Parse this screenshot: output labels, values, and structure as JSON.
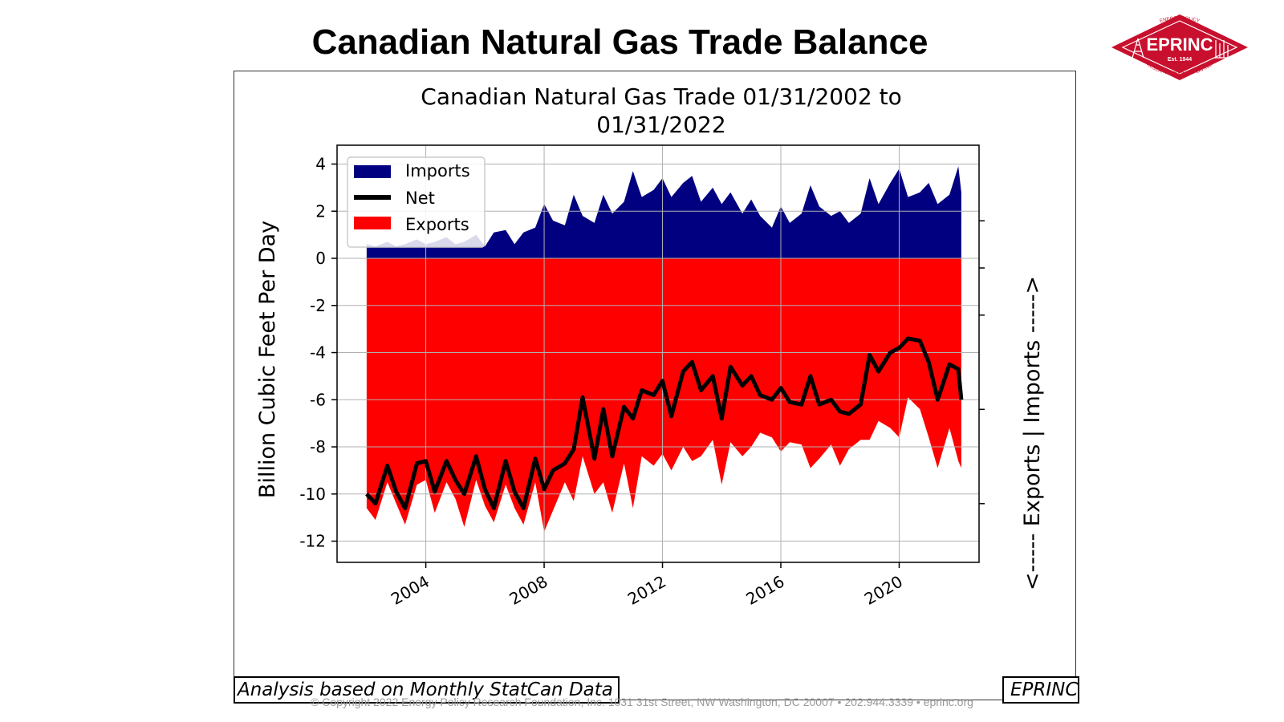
{
  "slide": {
    "title": "Canadian Natural Gas Trade Balance",
    "note_left": "Analysis based on Monthly StatCan Data",
    "note_right": "EPRINC",
    "copyright": "© Copyright 2022 Energy Policy Research Foundation, Inc. 1031 31st Street, NW Washington, DC 20007 • 202.944.3339 • eprinc.org"
  },
  "logo": {
    "main_text": "EPRINC",
    "est_text": "Est. 1944",
    "arc_top": "ENERGY POLICY",
    "arc_bottom": "RESEARCH FOUNDATION INC.",
    "color": "#c8102e"
  },
  "chart_data": {
    "type": "area",
    "title_line1": "Canadian Natural Gas Trade 01/31/2002 to",
    "title_line2": "01/31/2022",
    "ylabel": "Billion Cubic Feet Per Day",
    "ylabel_right": "<----- Exports | Imports ----->",
    "xlim": [
      2001.0,
      2022.7
    ],
    "ylim": [
      -12.9,
      4.8
    ],
    "yticks": [
      4,
      2,
      0,
      -2,
      -4,
      -6,
      -8,
      -10,
      -12
    ],
    "xticks": [
      2004,
      2008,
      2012,
      2016,
      2020
    ],
    "grid": true,
    "legend_position": "top-left",
    "colors": {
      "imports": "#000080",
      "net": "#000000",
      "exports": "#ff0000"
    },
    "anchor_points": [
      {
        "x": 2002.0,
        "imports": 0.6,
        "exports": -10.6,
        "net": -10.0
      },
      {
        "x": 2002.3,
        "imports": 0.5,
        "exports": -11.1,
        "net": -10.4
      },
      {
        "x": 2002.7,
        "imports": 0.7,
        "exports": -9.5,
        "net": -8.8
      },
      {
        "x": 2003.0,
        "imports": 0.5,
        "exports": -10.4,
        "net": -9.9
      },
      {
        "x": 2003.3,
        "imports": 0.6,
        "exports": -11.3,
        "net": -10.6
      },
      {
        "x": 2003.7,
        "imports": 0.8,
        "exports": -9.6,
        "net": -8.7
      },
      {
        "x": 2004.0,
        "imports": 0.6,
        "exports": -9.4,
        "net": -8.6
      },
      {
        "x": 2004.3,
        "imports": 0.7,
        "exports": -10.8,
        "net": -9.9
      },
      {
        "x": 2004.7,
        "imports": 0.9,
        "exports": -9.5,
        "net": -8.6
      },
      {
        "x": 2005.0,
        "imports": 0.6,
        "exports": -10.2,
        "net": -9.4
      },
      {
        "x": 2005.3,
        "imports": 0.7,
        "exports": -11.4,
        "net": -10.0
      },
      {
        "x": 2005.7,
        "imports": 1.0,
        "exports": -9.4,
        "net": -8.4
      },
      {
        "x": 2006.0,
        "imports": 0.5,
        "exports": -10.5,
        "net": -9.8
      },
      {
        "x": 2006.3,
        "imports": 1.1,
        "exports": -11.2,
        "net": -10.6
      },
      {
        "x": 2006.7,
        "imports": 1.2,
        "exports": -9.6,
        "net": -8.6
      },
      {
        "x": 2007.0,
        "imports": 0.6,
        "exports": -10.6,
        "net": -9.9
      },
      {
        "x": 2007.3,
        "imports": 1.1,
        "exports": -11.3,
        "net": -10.6
      },
      {
        "x": 2007.7,
        "imports": 1.3,
        "exports": -9.5,
        "net": -8.5
      },
      {
        "x": 2008.0,
        "imports": 2.3,
        "exports": -11.6,
        "net": -9.8
      },
      {
        "x": 2008.3,
        "imports": 1.6,
        "exports": -10.7,
        "net": -9.0
      },
      {
        "x": 2008.7,
        "imports": 1.4,
        "exports": -9.5,
        "net": -8.7
      },
      {
        "x": 2009.0,
        "imports": 2.7,
        "exports": -10.3,
        "net": -8.1
      },
      {
        "x": 2009.3,
        "imports": 1.8,
        "exports": -8.4,
        "net": -5.9
      },
      {
        "x": 2009.7,
        "imports": 1.5,
        "exports": -10.0,
        "net": -8.5
      },
      {
        "x": 2010.0,
        "imports": 2.7,
        "exports": -9.5,
        "net": -6.4
      },
      {
        "x": 2010.3,
        "imports": 1.9,
        "exports": -10.8,
        "net": -8.4
      },
      {
        "x": 2010.7,
        "imports": 2.4,
        "exports": -8.7,
        "net": -6.3
      },
      {
        "x": 2011.0,
        "imports": 3.7,
        "exports": -10.6,
        "net": -6.8
      },
      {
        "x": 2011.3,
        "imports": 2.6,
        "exports": -8.4,
        "net": -5.6
      },
      {
        "x": 2011.7,
        "imports": 2.9,
        "exports": -8.8,
        "net": -5.8
      },
      {
        "x": 2012.0,
        "imports": 3.4,
        "exports": -8.3,
        "net": -5.2
      },
      {
        "x": 2012.3,
        "imports": 2.6,
        "exports": -9.0,
        "net": -6.7
      },
      {
        "x": 2012.7,
        "imports": 3.2,
        "exports": -8.0,
        "net": -4.8
      },
      {
        "x": 2013.0,
        "imports": 3.5,
        "exports": -8.6,
        "net": -4.4
      },
      {
        "x": 2013.3,
        "imports": 2.4,
        "exports": -8.4,
        "net": -5.6
      },
      {
        "x": 2013.7,
        "imports": 3.0,
        "exports": -7.7,
        "net": -5.0
      },
      {
        "x": 2014.0,
        "imports": 2.3,
        "exports": -9.6,
        "net": -6.8
      },
      {
        "x": 2014.3,
        "imports": 2.8,
        "exports": -7.8,
        "net": -4.6
      },
      {
        "x": 2014.7,
        "imports": 1.9,
        "exports": -8.4,
        "net": -5.4
      },
      {
        "x": 2015.0,
        "imports": 2.5,
        "exports": -8.0,
        "net": -5.0
      },
      {
        "x": 2015.3,
        "imports": 1.8,
        "exports": -7.4,
        "net": -5.8
      },
      {
        "x": 2015.7,
        "imports": 1.3,
        "exports": -7.6,
        "net": -6.0
      },
      {
        "x": 2016.0,
        "imports": 2.2,
        "exports": -8.2,
        "net": -5.5
      },
      {
        "x": 2016.3,
        "imports": 1.5,
        "exports": -7.8,
        "net": -6.1
      },
      {
        "x": 2016.7,
        "imports": 1.9,
        "exports": -7.9,
        "net": -6.2
      },
      {
        "x": 2017.0,
        "imports": 3.1,
        "exports": -8.9,
        "net": -5.0
      },
      {
        "x": 2017.3,
        "imports": 2.2,
        "exports": -8.5,
        "net": -6.2
      },
      {
        "x": 2017.7,
        "imports": 1.8,
        "exports": -7.9,
        "net": -6.0
      },
      {
        "x": 2018.0,
        "imports": 2.0,
        "exports": -8.8,
        "net": -6.5
      },
      {
        "x": 2018.3,
        "imports": 1.5,
        "exports": -8.1,
        "net": -6.6
      },
      {
        "x": 2018.7,
        "imports": 1.9,
        "exports": -7.7,
        "net": -6.2
      },
      {
        "x": 2019.0,
        "imports": 3.4,
        "exports": -7.7,
        "net": -4.1
      },
      {
        "x": 2019.3,
        "imports": 2.3,
        "exports": -6.9,
        "net": -4.8
      },
      {
        "x": 2019.7,
        "imports": 3.2,
        "exports": -7.2,
        "net": -4.0
      },
      {
        "x": 2020.0,
        "imports": 3.8,
        "exports": -7.6,
        "net": -3.8
      },
      {
        "x": 2020.3,
        "imports": 2.6,
        "exports": -5.9,
        "net": -3.4
      },
      {
        "x": 2020.7,
        "imports": 2.8,
        "exports": -6.4,
        "net": -3.5
      },
      {
        "x": 2021.0,
        "imports": 3.2,
        "exports": -7.6,
        "net": -4.4
      },
      {
        "x": 2021.3,
        "imports": 2.3,
        "exports": -8.9,
        "net": -6.0
      },
      {
        "x": 2021.7,
        "imports": 2.7,
        "exports": -7.2,
        "net": -4.5
      },
      {
        "x": 2022.0,
        "imports": 3.9,
        "exports": -8.6,
        "net": -4.7
      },
      {
        "x": 2022.1,
        "imports": 2.8,
        "exports": -8.9,
        "net": -6.0
      }
    ],
    "series": [
      {
        "name": "Imports",
        "color": "#000080"
      },
      {
        "name": "Net",
        "color": "#000000"
      },
      {
        "name": "Exports",
        "color": "#ff0000"
      }
    ]
  }
}
